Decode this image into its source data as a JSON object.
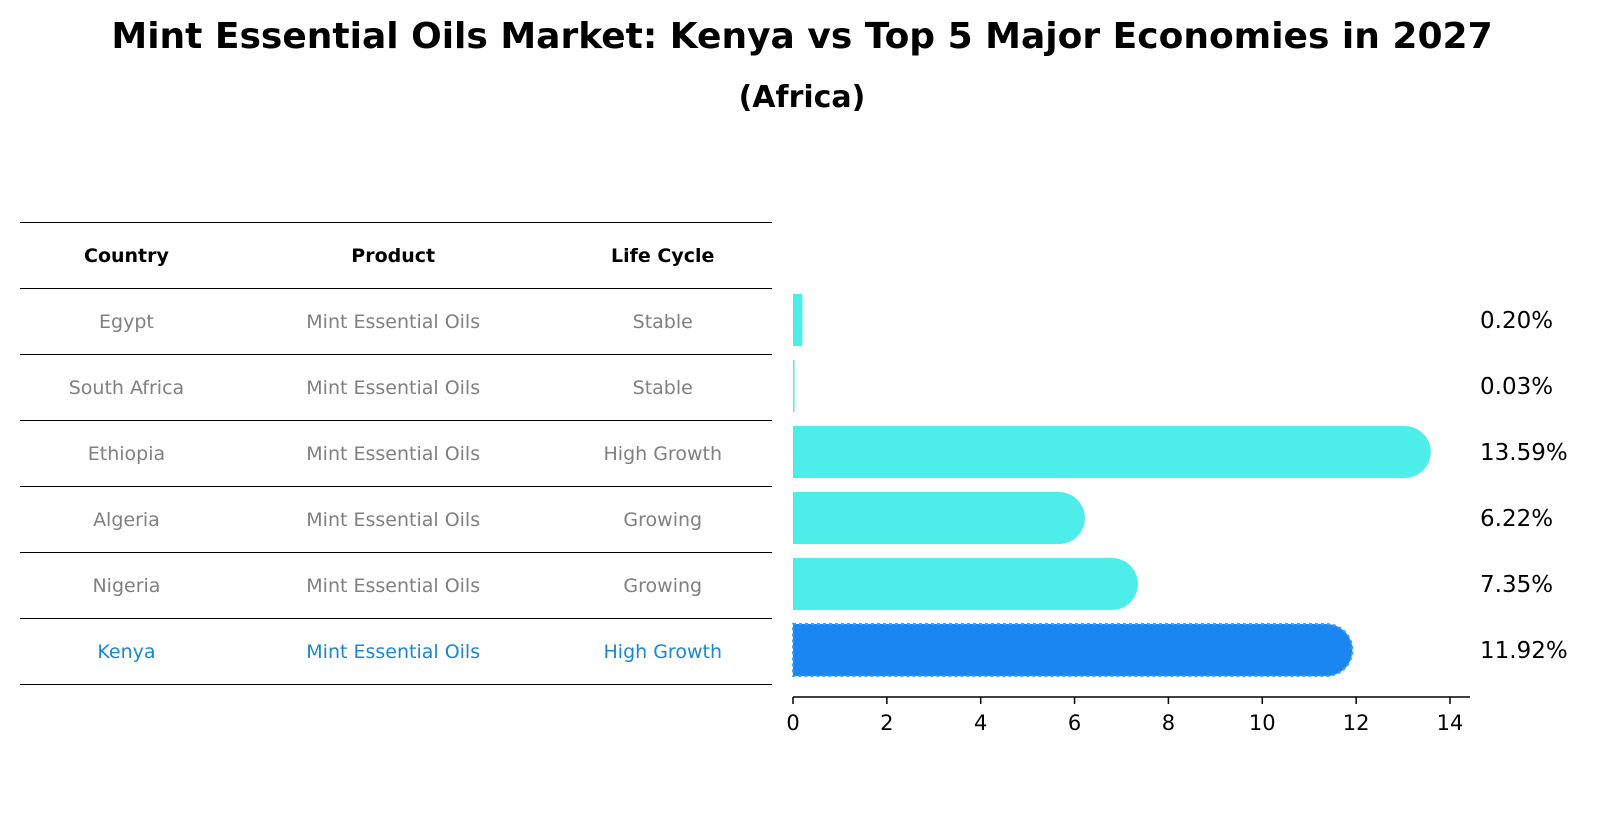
{
  "title": "Mint Essential Oils Market: Kenya vs Top 5 Major Economies in 2027",
  "subtitle": "(Africa)",
  "table": {
    "headers": [
      "Country",
      "Product",
      "Life Cycle"
    ],
    "rows": [
      {
        "country": "Egypt",
        "product": "Mint Essential Oils",
        "life_cycle": "Stable"
      },
      {
        "country": "South Africa",
        "product": "Mint Essential Oils",
        "life_cycle": "Stable"
      },
      {
        "country": "Ethiopia",
        "product": "Mint Essential Oils",
        "life_cycle": "High Growth"
      },
      {
        "country": "Algeria",
        "product": "Mint Essential Oils",
        "life_cycle": "Growing"
      },
      {
        "country": "Nigeria",
        "product": "Mint Essential Oils",
        "life_cycle": "Growing"
      },
      {
        "country": "Kenya",
        "product": "Mint Essential Oils",
        "life_cycle": "High Growth"
      }
    ]
  },
  "chart_data": {
    "type": "bar",
    "orientation": "horizontal",
    "categories": [
      "Egypt",
      "South Africa",
      "Ethiopia",
      "Algeria",
      "Nigeria",
      "Kenya"
    ],
    "values": [
      0.2,
      0.03,
      13.59,
      6.22,
      7.35,
      11.92
    ],
    "value_labels": [
      "0.20%",
      "0.03%",
      "13.59%",
      "6.22%",
      "7.35%",
      "11.92%"
    ],
    "highlight": "Kenya",
    "xlim": [
      0,
      14
    ],
    "xticks": [
      0,
      2,
      4,
      6,
      8,
      10,
      12,
      14
    ],
    "colors": {
      "default": "#4deeea",
      "highlight": "#1a86f2"
    }
  }
}
